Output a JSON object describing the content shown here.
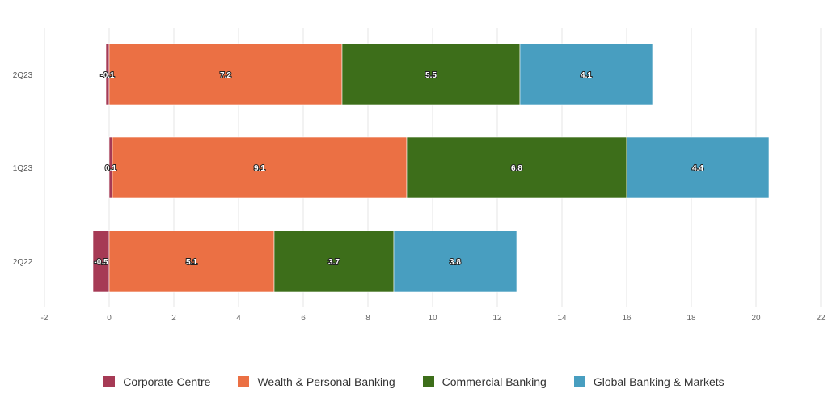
{
  "chart_data": {
    "type": "bar",
    "orientation": "horizontal",
    "stacked": true,
    "categories": [
      "2Q23",
      "1Q23",
      "2Q22"
    ],
    "series": [
      {
        "name": "Corporate Centre",
        "color": "#a63a55",
        "values": [
          -0.1,
          0.1,
          -0.5
        ],
        "labels": [
          "-0.1",
          "0.1",
          "-0.5"
        ]
      },
      {
        "name": "Wealth & Personal Banking",
        "color": "#eb7044",
        "values": [
          7.2,
          9.1,
          5.1
        ],
        "labels": [
          "7.2",
          "9.1",
          "5.1"
        ]
      },
      {
        "name": "Commercial Banking",
        "color": "#3d6e1a",
        "values": [
          5.5,
          6.8,
          3.7
        ],
        "labels": [
          "5.5",
          "6.8",
          "3.7"
        ]
      },
      {
        "name": "Global Banking & Markets",
        "color": "#489ec0",
        "values": [
          4.1,
          4.4,
          3.8
        ],
        "labels": [
          "4.1",
          "4.4",
          "3.8"
        ]
      }
    ],
    "xlim": [
      -2,
      22
    ],
    "xticks": [
      -2,
      0,
      2,
      4,
      6,
      8,
      10,
      12,
      14,
      16,
      18,
      20,
      22
    ],
    "grid": true,
    "legend_position": "bottom"
  }
}
